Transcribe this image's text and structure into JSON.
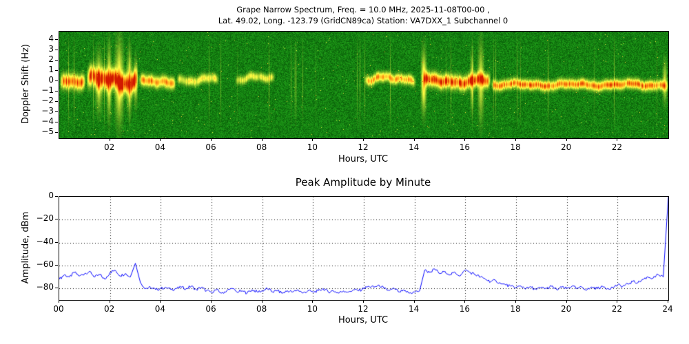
{
  "figure": {
    "title_line1": "Grape Narrow Spectrum, Freq. = 10.0 MHz, 2025-11-08T00-00 ,",
    "title_line2": "Lat.  49.02, Long. -123.79 (GridCN89ca) Station: VA7DXX_1 Subchannel 0"
  },
  "colors": {
    "line": "#0000ff",
    "background": "#ffffff",
    "spectrogram_colormap": [
      "#0a5c0a",
      "#00aa00",
      "#ffff46",
      "#ff9614",
      "#d21900"
    ]
  },
  "chart_data": [
    {
      "type": "heatmap",
      "title": "",
      "xlabel": "Hours, UTC",
      "ylabel": "Doppler Shift (Hz)",
      "xlim": [
        0,
        24
      ],
      "ylim": [
        -5.5,
        4.8
      ],
      "grid": false,
      "xticks": {
        "values": [
          2,
          4,
          6,
          8,
          10,
          12,
          14,
          16,
          18,
          20,
          22
        ],
        "labels": [
          "02",
          "04",
          "06",
          "08",
          "10",
          "12",
          "14",
          "16",
          "18",
          "20",
          "22"
        ]
      },
      "yticks": {
        "values": [
          4,
          3,
          2,
          1,
          0,
          -1,
          -2,
          -3,
          -4,
          -5
        ],
        "labels": [
          "4",
          "3",
          "2",
          "1",
          "0",
          "−1",
          "−2",
          "−3",
          "−4",
          "−5"
        ]
      },
      "description": "Noisy green spectrogram; yellow/red Doppler trace near 0 Hz, strong 00-03h and 14-17h, faint intermittent 05-08h, absent 09-12h, steady slightly below 0 Hz 17-24h",
      "trace_segments": [
        {
          "start": 0.0,
          "end": 1.05,
          "offset": -0.1,
          "spread": 0.45,
          "intensity": 0.95,
          "wiggle": 0.25
        },
        {
          "start": 1.05,
          "end": 3.1,
          "offset": 0.15,
          "spread": 0.6,
          "intensity": 1.0,
          "wiggle": 0.55
        },
        {
          "start": 3.1,
          "end": 4.6,
          "offset": -0.05,
          "spread": 0.35,
          "intensity": 0.8,
          "wiggle": 0.3
        },
        {
          "start": 4.6,
          "end": 6.3,
          "offset": 0.2,
          "spread": 0.28,
          "intensity": 0.5,
          "wiggle": 0.3
        },
        {
          "start": 6.9,
          "end": 8.5,
          "offset": 0.3,
          "spread": 0.26,
          "intensity": 0.45,
          "wiggle": 0.35
        },
        {
          "start": 12.0,
          "end": 14.05,
          "offset": 0.25,
          "spread": 0.3,
          "intensity": 0.75,
          "wiggle": 0.35
        },
        {
          "start": 14.3,
          "end": 17.0,
          "offset": 0.05,
          "spread": 0.42,
          "intensity": 1.0,
          "wiggle": 0.3
        },
        {
          "start": 17.0,
          "end": 24.0,
          "offset": -0.3,
          "spread": 0.3,
          "intensity": 0.85,
          "wiggle": 0.2
        }
      ],
      "bursts": [
        {
          "t": 1.55,
          "width": 0.18,
          "height": 3.2,
          "intensity": 0.5
        },
        {
          "t": 1.95,
          "width": 0.12,
          "height": 4.0,
          "intensity": 0.55
        },
        {
          "t": 2.35,
          "width": 0.22,
          "height": 4.6,
          "intensity": 0.6
        },
        {
          "t": 2.75,
          "width": 0.14,
          "height": 3.4,
          "intensity": 0.5
        },
        {
          "t": 3.0,
          "width": 0.1,
          "height": 2.6,
          "intensity": 0.45
        },
        {
          "t": 9.3,
          "width": 0.07,
          "height": 4.5,
          "intensity": 0.16
        },
        {
          "t": 14.35,
          "width": 0.14,
          "height": 3.4,
          "intensity": 0.7
        },
        {
          "t": 16.25,
          "width": 0.1,
          "height": 3.2,
          "intensity": 0.4
        },
        {
          "t": 16.6,
          "width": 0.16,
          "height": 4.4,
          "intensity": 0.45
        },
        {
          "t": 23.85,
          "width": 0.12,
          "height": 2.4,
          "intensity": 0.4
        }
      ]
    },
    {
      "type": "line",
      "title": "Peak Amplitude by Minute",
      "xlabel": "Hours, UTC",
      "ylabel": "Amplitude, dBm",
      "xlim": [
        0,
        24
      ],
      "ylim": [
        -90,
        0
      ],
      "grid": true,
      "grid_style": "dotted",
      "line_color": "#0000ff",
      "xticks": {
        "values": [
          0,
          2,
          4,
          6,
          8,
          10,
          12,
          14,
          16,
          18,
          20,
          22,
          24
        ],
        "labels": [
          "00",
          "02",
          "04",
          "06",
          "08",
          "10",
          "12",
          "14",
          "16",
          "18",
          "20",
          "22",
          "24"
        ]
      },
      "yticks": {
        "values": [
          0,
          -20,
          -40,
          -60,
          -80
        ],
        "labels": [
          "0",
          "−20",
          "−40",
          "−60",
          "−80"
        ]
      },
      "x_step": 0.2,
      "values": [
        -72,
        -68,
        -70,
        -66,
        -69,
        -67,
        -65,
        -70,
        -68,
        -72,
        -66,
        -64,
        -69,
        -67,
        -70,
        -58,
        -75,
        -80,
        -79,
        -81,
        -80,
        -79,
        -81,
        -80,
        -79,
        -80,
        -78,
        -81,
        -79,
        -82,
        -83,
        -81,
        -84,
        -82,
        -80,
        -83,
        -82,
        -84,
        -81,
        -83,
        -82,
        -80,
        -83,
        -82,
        -84,
        -82,
        -83,
        -81,
        -84,
        -82,
        -83,
        -82,
        -80,
        -83,
        -82,
        -84,
        -82,
        -83,
        -81,
        -82,
        -80,
        -78,
        -79,
        -77,
        -80,
        -82,
        -80,
        -83,
        -82,
        -84,
        -83,
        -82,
        -64,
        -66,
        -63,
        -67,
        -65,
        -68,
        -66,
        -69,
        -64,
        -66,
        -68,
        -70,
        -72,
        -74,
        -73,
        -76,
        -77,
        -78,
        -79,
        -78,
        -80,
        -79,
        -81,
        -79,
        -80,
        -78,
        -81,
        -79,
        -80,
        -78,
        -80,
        -79,
        -81,
        -79,
        -80,
        -78,
        -80,
        -79,
        -77,
        -78,
        -76,
        -74,
        -75,
        -72,
        -70,
        -71,
        -68,
        -70,
        0
      ]
    }
  ]
}
